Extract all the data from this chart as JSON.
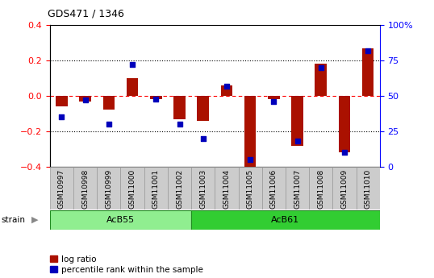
{
  "title": "GDS471 / 1346",
  "samples": [
    "GSM10997",
    "GSM10998",
    "GSM10999",
    "GSM11000",
    "GSM11001",
    "GSM11002",
    "GSM11003",
    "GSM11004",
    "GSM11005",
    "GSM11006",
    "GSM11007",
    "GSM11008",
    "GSM11009",
    "GSM11010"
  ],
  "log_ratio": [
    -0.06,
    -0.03,
    -0.075,
    0.1,
    -0.02,
    -0.13,
    -0.14,
    0.06,
    -0.41,
    -0.02,
    -0.28,
    0.18,
    -0.32,
    0.27
  ],
  "percentile_rank": [
    35,
    47,
    30,
    72,
    48,
    30,
    20,
    57,
    5,
    46,
    18,
    70,
    10,
    82
  ],
  "strain_labels": [
    "AcB55",
    "AcB61"
  ],
  "acb55_count": 6,
  "acb61_count": 8,
  "acb55_color": "#90EE90",
  "acb61_color": "#32CD32",
  "strain_border_color": "#228B22",
  "bar_color_red": "#AA1100",
  "bar_color_blue": "#0000BB",
  "ylim_left": [
    -0.4,
    0.4
  ],
  "ylim_right": [
    0,
    100
  ],
  "yticks_left": [
    -0.4,
    -0.2,
    0.0,
    0.2,
    0.4
  ],
  "yticks_right": [
    0,
    25,
    50,
    75,
    100
  ],
  "ytick_labels_right": [
    "0",
    "25",
    "50",
    "75",
    "100%"
  ],
  "legend_log_ratio": "log ratio",
  "legend_percentile": "percentile rank within the sample",
  "xlabel_color": "#555555",
  "bar_width": 0.5,
  "blue_marker_size": 20
}
